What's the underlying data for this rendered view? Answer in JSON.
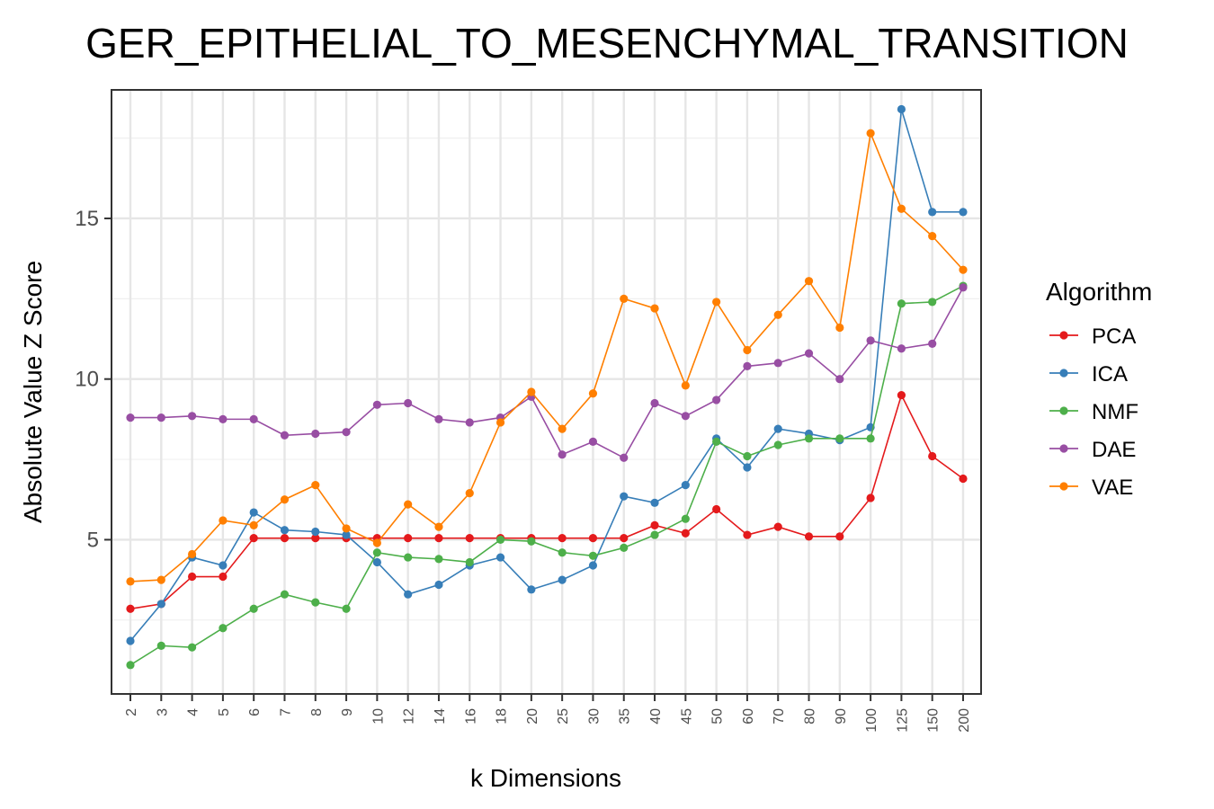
{
  "chart_data": {
    "type": "line",
    "title": "GER_EPITHELIAL_TO_MESENCHYMAL_TRANSITION",
    "xlabel": "k Dimensions",
    "ylabel": "Absolute Value Z Score",
    "categories": [
      "2",
      "3",
      "4",
      "5",
      "6",
      "7",
      "8",
      "9",
      "10",
      "12",
      "14",
      "16",
      "18",
      "20",
      "25",
      "30",
      "35",
      "40",
      "45",
      "50",
      "60",
      "70",
      "80",
      "90",
      "100",
      "125",
      "150",
      "200"
    ],
    "yticks": [
      5,
      10,
      15
    ],
    "ylim": [
      0.2,
      19.0
    ],
    "grid": true,
    "legend_title": "Algorithm",
    "legend_position": "right",
    "series": [
      {
        "name": "PCA",
        "color": "#E41A1C",
        "values": [
          2.85,
          3.0,
          3.85,
          3.85,
          5.05,
          5.05,
          5.05,
          5.05,
          5.05,
          5.05,
          5.05,
          5.05,
          5.05,
          5.05,
          5.05,
          5.05,
          5.05,
          5.45,
          5.2,
          5.95,
          5.15,
          5.4,
          5.1,
          5.1,
          6.3,
          9.5,
          7.6,
          6.9
        ]
      },
      {
        "name": "ICA",
        "color": "#377EB8",
        "values": [
          1.85,
          3.0,
          4.45,
          4.2,
          5.85,
          5.3,
          5.25,
          5.15,
          4.3,
          3.3,
          3.6,
          4.2,
          4.45,
          3.45,
          3.75,
          4.2,
          6.35,
          6.15,
          6.7,
          8.15,
          7.25,
          8.45,
          8.3,
          8.1,
          8.5,
          18.4,
          15.2,
          15.2
        ]
      },
      {
        "name": "NMF",
        "color": "#4DAF4A",
        "values": [
          1.1,
          1.7,
          1.65,
          2.25,
          2.85,
          3.3,
          3.05,
          2.85,
          4.6,
          4.45,
          4.4,
          4.3,
          5.0,
          4.95,
          4.6,
          4.5,
          4.75,
          5.15,
          5.65,
          8.05,
          7.6,
          7.95,
          8.15,
          8.15,
          8.15,
          12.35,
          12.4,
          12.9
        ]
      },
      {
        "name": "DAE",
        "color": "#984EA3",
        "values": [
          8.8,
          8.8,
          8.85,
          8.75,
          8.75,
          8.25,
          8.3,
          8.35,
          9.2,
          9.25,
          8.75,
          8.65,
          8.8,
          9.45,
          7.65,
          8.05,
          7.55,
          9.25,
          8.85,
          9.35,
          10.4,
          10.5,
          10.8,
          10.0,
          11.2,
          10.95,
          11.1,
          12.85
        ]
      },
      {
        "name": "VAE",
        "color": "#FF7F00",
        "values": [
          3.7,
          3.75,
          4.55,
          5.6,
          5.45,
          6.25,
          6.7,
          5.35,
          4.9,
          6.1,
          5.4,
          6.45,
          8.65,
          9.6,
          8.45,
          9.55,
          12.5,
          12.2,
          9.8,
          12.4,
          10.9,
          12.0,
          13.05,
          11.6,
          17.65,
          15.3,
          14.45,
          13.4
        ]
      }
    ]
  }
}
